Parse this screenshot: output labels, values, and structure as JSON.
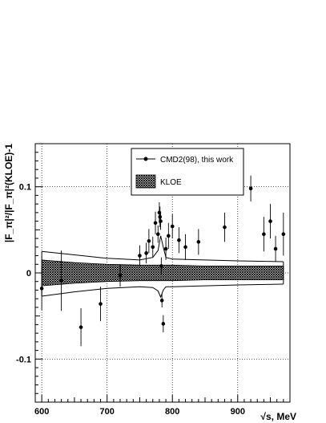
{
  "chart_data": {
    "type": "scatter",
    "xlabel": "√s, MeV",
    "ylabel": "|F_π|²/|F_π|²(KLOE)-1",
    "xlim": [
      590,
      980
    ],
    "ylim": [
      -0.15,
      0.15
    ],
    "x_ticks": [
      600,
      700,
      800,
      900
    ],
    "y_ticks": [
      -0.1,
      0,
      0.1
    ],
    "y_tick_labels": [
      "-0.1",
      "0",
      "0.1"
    ],
    "grid": "dotted",
    "legend_position": "top-right",
    "series": [
      {
        "name": "CMD2(98), this work",
        "points": [
          {
            "x": 600,
            "y": -0.018,
            "err": 0.025
          },
          {
            "x": 630,
            "y": -0.009,
            "err": 0.035
          },
          {
            "x": 660,
            "y": -0.063,
            "err": 0.022
          },
          {
            "x": 690,
            "y": -0.036,
            "err": 0.02
          },
          {
            "x": 720,
            "y": -0.003,
            "err": 0.013
          },
          {
            "x": 750,
            "y": 0.02,
            "err": 0.012
          },
          {
            "x": 760,
            "y": 0.023,
            "err": 0.012
          },
          {
            "x": 764,
            "y": 0.037,
            "err": 0.014
          },
          {
            "x": 770,
            "y": 0.03,
            "err": 0.012
          },
          {
            "x": 774,
            "y": 0.058,
            "err": 0.013
          },
          {
            "x": 778,
            "y": 0.045,
            "err": 0.01
          },
          {
            "x": 780,
            "y": 0.07,
            "err": 0.012
          },
          {
            "x": 781,
            "y": 0.065,
            "err": 0.012
          },
          {
            "x": 782,
            "y": 0.06,
            "err": 0.01
          },
          {
            "x": 783,
            "y": 0.008,
            "err": 0.01
          },
          {
            "x": 784,
            "y": -0.032,
            "err": 0.008
          },
          {
            "x": 786,
            "y": -0.059,
            "err": 0.01
          },
          {
            "x": 790,
            "y": 0.028,
            "err": 0.013
          },
          {
            "x": 794,
            "y": 0.043,
            "err": 0.015
          },
          {
            "x": 800,
            "y": 0.054,
            "err": 0.014
          },
          {
            "x": 810,
            "y": 0.038,
            "err": 0.015
          },
          {
            "x": 820,
            "y": 0.03,
            "err": 0.015
          },
          {
            "x": 840,
            "y": 0.036,
            "err": 0.015
          },
          {
            "x": 880,
            "y": 0.053,
            "err": 0.017
          },
          {
            "x": 920,
            "y": 0.098,
            "err": 0.015
          },
          {
            "x": 940,
            "y": 0.045,
            "err": 0.02
          },
          {
            "x": 950,
            "y": 0.06,
            "err": 0.02
          },
          {
            "x": 958,
            "y": 0.028,
            "err": 0.015
          },
          {
            "x": 970,
            "y": 0.045,
            "err": 0.025
          }
        ]
      },
      {
        "name": "KLOE",
        "type": "band",
        "x": [
          600,
          650,
          700,
          750,
          770,
          778,
          782,
          786,
          790,
          800,
          850,
          900,
          970
        ],
        "lower": [
          -0.027,
          -0.022,
          -0.018,
          -0.016,
          -0.017,
          -0.021,
          -0.028,
          -0.02,
          -0.016,
          -0.016,
          -0.015,
          -0.014,
          -0.013
        ],
        "upper": [
          0.025,
          0.021,
          0.017,
          0.015,
          0.018,
          0.026,
          0.043,
          0.03,
          0.018,
          0.016,
          0.015,
          0.014,
          0.013
        ],
        "inner_lower": [
          -0.015,
          -0.012,
          -0.01,
          -0.009,
          -0.009,
          -0.009,
          -0.009,
          -0.009,
          -0.009,
          -0.009,
          -0.008,
          -0.008,
          -0.008
        ],
        "inner_upper": [
          0.015,
          0.012,
          0.01,
          0.009,
          0.009,
          0.009,
          0.009,
          0.009,
          0.009,
          0.009,
          0.008,
          0.008,
          0.008
        ]
      }
    ]
  },
  "legend": {
    "cmd2_label": "CMD2(98), this work",
    "kloe_label": "KLOE"
  }
}
